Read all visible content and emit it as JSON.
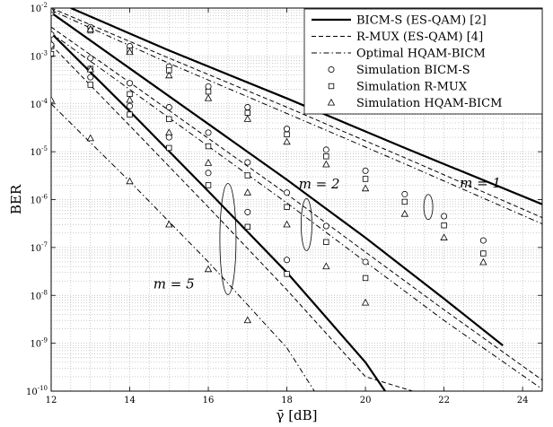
{
  "chart_data": {
    "type": "line",
    "xlabel": "γ̄ [dB]",
    "ylabel": "BER",
    "xlim": [
      12,
      24.5
    ],
    "ylim": [
      1e-10,
      0.01
    ],
    "yscale": "log",
    "grid": true,
    "legend_position": "top-right",
    "x_ticks": [
      "12",
      "14",
      "16",
      "18",
      "20",
      "22",
      "24"
    ],
    "y_tick_exponents": [
      -10,
      -9,
      -8,
      -7,
      -6,
      -5,
      -4,
      -3,
      -2
    ],
    "legend": [
      {
        "label": "BICM-S (ES-QAM) [2]",
        "style": "solid"
      },
      {
        "label": "R-MUX (ES-QAM) [4]",
        "style": "dashed"
      },
      {
        "label": "Optimal HQAM-BICM",
        "style": "dashdot"
      },
      {
        "label": "Simulation BICM-S",
        "marker": "circle"
      },
      {
        "label": "Simulation R-MUX",
        "marker": "square"
      },
      {
        "label": "Simulation HQAM-BICM",
        "marker": "triangle"
      }
    ],
    "annotations": [
      {
        "text": "m = 1",
        "x": 22.4,
        "y": 1.8e-06
      },
      {
        "text": "m = 2",
        "x": 18.3,
        "y": 1.7e-06
      },
      {
        "text": "m = 5",
        "x": 14.6,
        "y": 1.4e-08
      }
    ],
    "series": [
      {
        "group": "m=1",
        "kind": "analytical",
        "style": "solid",
        "x": [
          12.5,
          15,
          18,
          21,
          24.5
        ],
        "y": [
          0.01,
          0.0013,
          0.00013,
          1.2e-05,
          8e-07
        ]
      },
      {
        "group": "m=1",
        "kind": "analytical",
        "style": "dashed",
        "x": [
          12,
          15,
          18,
          21,
          24.5
        ],
        "y": [
          0.01,
          0.0009,
          8.5e-05,
          7.5e-06,
          4.2e-07
        ]
      },
      {
        "group": "m=1",
        "kind": "analytical",
        "style": "dashdot",
        "x": [
          12,
          15,
          18,
          21,
          24.5
        ],
        "y": [
          0.009,
          0.0007,
          6.3e-05,
          5.6e-06,
          3.1e-07
        ]
      },
      {
        "group": "m=2",
        "kind": "analytical",
        "style": "solid",
        "x": [
          12,
          14,
          16,
          18,
          20,
          22,
          23.5
        ],
        "y": [
          0.008,
          0.00055,
          3.8e-05,
          2.6e-06,
          1.6e-07,
          8.5e-09,
          9e-10
        ]
      },
      {
        "group": "m=2",
        "kind": "analytical",
        "style": "dashed",
        "x": [
          12,
          14,
          16,
          18,
          20,
          22,
          24.5
        ],
        "y": [
          0.004,
          0.00028,
          1.9e-05,
          1.3e-06,
          8e-08,
          5e-09,
          1.7e-10
        ]
      },
      {
        "group": "m=2",
        "kind": "analytical",
        "style": "dashdot",
        "x": [
          12,
          14,
          16,
          18,
          20,
          22,
          24.5
        ],
        "y": [
          0.003,
          0.0002,
          1.3e-05,
          8.5e-07,
          5e-08,
          3e-09,
          1.1e-10
        ]
      },
      {
        "group": "m=5",
        "kind": "analytical",
        "style": "solid",
        "x": [
          12,
          14,
          16,
          18,
          20,
          20.5
        ],
        "y": [
          0.003,
          7e-05,
          1.5e-06,
          3e-08,
          4e-10,
          1e-10
        ]
      },
      {
        "group": "m=5",
        "kind": "analytical",
        "style": "dashed",
        "x": [
          12,
          14,
          16,
          18,
          20,
          21.2
        ],
        "y": [
          0.0017,
          3.5e-05,
          7e-07,
          1.3e-08,
          2e-10,
          1e-10
        ]
      },
      {
        "group": "m=5",
        "kind": "analytical",
        "style": "dashdot",
        "x": [
          12,
          14,
          16,
          18,
          18.7
        ],
        "y": [
          0.0001,
          2.4e-06,
          5e-08,
          8e-10,
          1e-10
        ]
      },
      {
        "group": "m=1",
        "kind": "simulation",
        "marker": "circle",
        "x": [
          12,
          13,
          14,
          15,
          16,
          17,
          18,
          19,
          20,
          21,
          22,
          23
        ],
        "y": [
          0.009,
          0.004,
          0.0016,
          0.0006,
          0.00023,
          8.5e-05,
          3e-05,
          1.1e-05,
          4e-06,
          1.3e-06,
          4.5e-07,
          1.4e-07
        ]
      },
      {
        "group": "m=1",
        "kind": "simulation",
        "marker": "square",
        "x": [
          12,
          13,
          14,
          15,
          16,
          17,
          18,
          19,
          20,
          21,
          22,
          23
        ],
        "y": [
          0.008,
          0.0034,
          0.0013,
          0.0005,
          0.00018,
          6.5e-05,
          2.3e-05,
          8e-06,
          2.7e-06,
          9e-07,
          2.9e-07,
          7.5e-08
        ]
      },
      {
        "group": "m=1",
        "kind": "simulation",
        "marker": "triangle",
        "x": [
          12,
          13,
          14,
          15,
          16,
          17,
          18,
          19,
          20,
          21,
          22,
          23
        ],
        "y": [
          0.009,
          0.0036,
          0.0012,
          0.00039,
          0.00013,
          4.8e-05,
          1.6e-05,
          5.4e-06,
          1.7e-06,
          5e-07,
          1.6e-07,
          4.9e-08
        ]
      },
      {
        "group": "m=2",
        "kind": "simulation",
        "marker": "circle",
        "x": [
          12,
          13,
          14,
          15,
          16,
          17,
          18,
          19,
          20
        ],
        "y": [
          0.0028,
          0.0009,
          0.00027,
          8.5e-05,
          2.5e-05,
          6e-06,
          1.4e-06,
          2.8e-07,
          5e-08
        ]
      },
      {
        "group": "m=2",
        "kind": "simulation",
        "marker": "square",
        "x": [
          12,
          13,
          14,
          15,
          16,
          17,
          18,
          19,
          20
        ],
        "y": [
          0.0016,
          0.00054,
          0.00016,
          4.8e-05,
          1.3e-05,
          3.2e-06,
          7e-07,
          1.3e-07,
          2.3e-08
        ]
      },
      {
        "group": "m=2",
        "kind": "simulation",
        "marker": "triangle",
        "x": [
          12,
          13,
          14,
          15,
          16,
          17,
          18,
          19,
          20
        ],
        "y": [
          0.0018,
          0.00052,
          0.00012,
          2.5e-05,
          5.8e-06,
          1.4e-06,
          3e-07,
          4e-08,
          7e-09
        ]
      },
      {
        "group": "m=5",
        "kind": "simulation",
        "marker": "circle",
        "x": [
          12,
          13,
          14,
          15,
          16,
          17,
          18
        ],
        "y": [
          0.0017,
          0.00036,
          9e-05,
          2e-05,
          3.6e-06,
          5.5e-07,
          5.5e-08
        ]
      },
      {
        "group": "m=5",
        "kind": "simulation",
        "marker": "square",
        "x": [
          12,
          13,
          14,
          15,
          16,
          17,
          18
        ],
        "y": [
          0.0011,
          0.00025,
          6e-05,
          1.2e-05,
          2e-06,
          2.7e-07,
          2.8e-08
        ]
      },
      {
        "group": "m=5",
        "kind": "simulation",
        "marker": "triangle",
        "x": [
          12,
          13,
          14,
          15,
          16,
          17
        ],
        "y": [
          0.00012,
          1.9e-05,
          2.4e-06,
          3e-07,
          3.5e-08,
          3e-09
        ]
      }
    ]
  }
}
